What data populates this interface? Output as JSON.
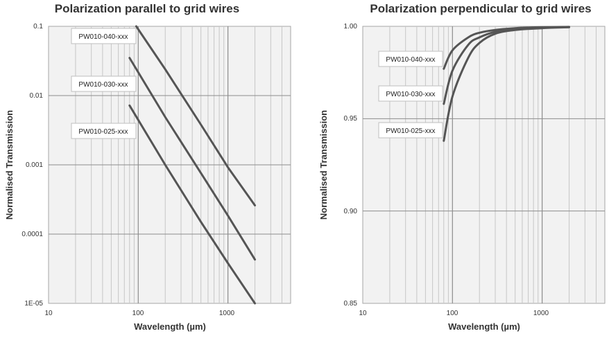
{
  "chart_data": [
    {
      "type": "line",
      "title": "Polarization parallel to grid wires",
      "xlabel": "Wavelength (µm)",
      "ylabel": "Normalised Transmission",
      "xscale": "log",
      "yscale": "log",
      "xlim": [
        10,
        5000
      ],
      "ylim": [
        1e-05,
        0.1
      ],
      "grid": true,
      "xticks": [
        "10",
        "100",
        "1000"
      ],
      "yticks": [
        "0.1",
        "0.01",
        "0.001",
        "0.0001",
        "1E-05"
      ],
      "series": [
        {
          "name": "PW010-040-xxx",
          "x": [
            95,
            200,
            500,
            1000,
            2000
          ],
          "y": [
            0.11,
            0.024,
            0.0038,
            0.00092,
            0.00026
          ]
        },
        {
          "name": "PW010-030-xxx",
          "x": [
            80,
            200,
            500,
            1000,
            2000
          ],
          "y": [
            0.035,
            0.0049,
            0.00076,
            0.000185,
            4.3e-05
          ]
        },
        {
          "name": "PW010-025-xxx",
          "x": [
            80,
            200,
            500,
            1000,
            2000
          ],
          "y": [
            0.0072,
            0.001,
            0.00015,
            3.8e-05,
            1e-05
          ]
        }
      ],
      "annotations": [
        "PW010-040-xxx",
        "PW010-030-xxx",
        "PW010-025-xxx"
      ]
    },
    {
      "type": "line",
      "title": "Polarization perpendicular to grid wires",
      "xlabel": "Wavelength (µm)",
      "ylabel": "Normalised Transmission",
      "xscale": "log",
      "yscale": "linear",
      "xlim": [
        10,
        5000
      ],
      "ylim": [
        0.85,
        1.0
      ],
      "grid": true,
      "xticks": [
        "10",
        "100",
        "1000"
      ],
      "yticks": [
        "1.00",
        "0.95",
        "0.90",
        "0.85"
      ],
      "series": [
        {
          "name": "PW010-040-xxx",
          "x": [
            80,
            100,
            150,
            200,
            300,
            500,
            1000,
            2000
          ],
          "y": [
            0.977,
            0.987,
            0.994,
            0.9965,
            0.998,
            0.999,
            0.9995,
            0.9997
          ]
        },
        {
          "name": "PW010-030-xxx",
          "x": [
            80,
            100,
            150,
            200,
            300,
            500,
            1000,
            2000
          ],
          "y": [
            0.958,
            0.976,
            0.99,
            0.994,
            0.997,
            0.9985,
            0.9993,
            0.9996
          ]
        },
        {
          "name": "PW010-025-xxx",
          "x": [
            80,
            100,
            150,
            200,
            300,
            500,
            1000,
            2000
          ],
          "y": [
            0.938,
            0.962,
            0.983,
            0.991,
            0.996,
            0.998,
            0.999,
            0.9995
          ]
        }
      ],
      "annotations": [
        "PW010-040-xxx",
        "PW010-030-xxx",
        "PW010-025-xxx"
      ]
    }
  ]
}
